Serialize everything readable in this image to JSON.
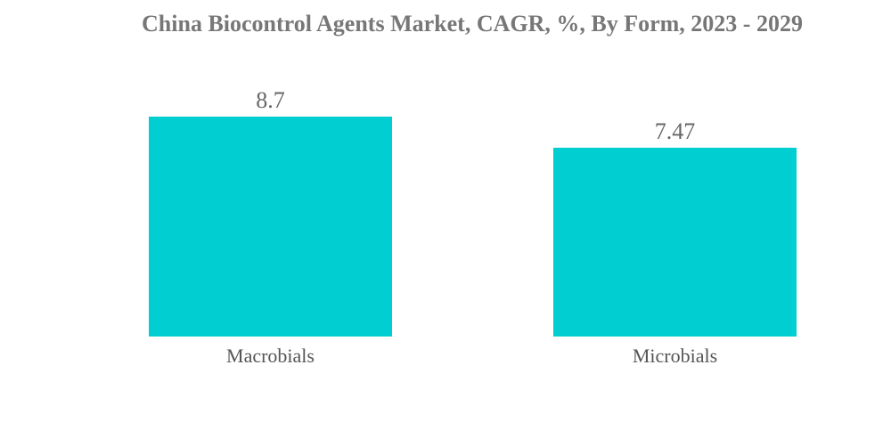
{
  "chart_data": {
    "type": "bar",
    "title": "China Biocontrol Agents Market, CAGR, %, By Form, 2023 - 2029",
    "categories": [
      "Macrobials",
      "Microbials"
    ],
    "values": [
      8.7,
      7.47
    ],
    "value_labels": [
      "8.7",
      "7.47"
    ],
    "xlabel": "",
    "ylabel": "",
    "ylim": [
      0,
      8.7
    ],
    "grid": false,
    "bar_color": "#00CED1"
  }
}
